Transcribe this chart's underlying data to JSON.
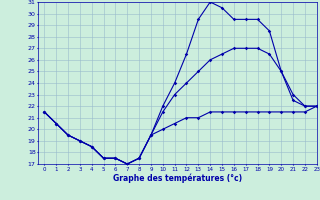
{
  "title": "Graphe des températures (°c)",
  "bg_color": "#cceedd",
  "line_color": "#0000aa",
  "grid_color": "#99bbcc",
  "ylim": [
    17,
    31
  ],
  "xlim": [
    -0.5,
    23
  ],
  "yticks": [
    17,
    18,
    19,
    20,
    21,
    22,
    23,
    24,
    25,
    26,
    27,
    28,
    29,
    30,
    31
  ],
  "xticks": [
    0,
    1,
    2,
    3,
    4,
    5,
    6,
    7,
    8,
    9,
    10,
    11,
    12,
    13,
    14,
    15,
    16,
    17,
    18,
    19,
    20,
    21,
    22,
    23
  ],
  "line_bottom_x": [
    0,
    1,
    2,
    3,
    4,
    5,
    6,
    7,
    8,
    9,
    10,
    11,
    12,
    13,
    14,
    15,
    16,
    17,
    18,
    19,
    20,
    21,
    22,
    23
  ],
  "line_bottom_y": [
    21.5,
    20.5,
    19.5,
    19.0,
    18.5,
    17.5,
    17.5,
    17.0,
    17.5,
    19.5,
    20.0,
    20.5,
    21.0,
    21.0,
    21.5,
    21.5,
    21.5,
    21.5,
    21.5,
    21.5,
    21.5,
    21.5,
    21.5,
    22.0
  ],
  "line_mid_x": [
    0,
    1,
    2,
    3,
    4,
    5,
    6,
    7,
    8,
    9,
    10,
    11,
    12,
    13,
    14,
    15,
    16,
    17,
    18,
    19,
    20,
    21,
    22,
    23
  ],
  "line_mid_y": [
    21.5,
    20.5,
    19.5,
    19.0,
    18.5,
    17.5,
    17.5,
    17.0,
    17.5,
    19.5,
    21.5,
    23.0,
    24.0,
    25.0,
    26.0,
    26.5,
    27.0,
    27.0,
    27.0,
    26.5,
    25.0,
    23.0,
    22.0,
    22.0
  ],
  "line_top_x": [
    0,
    1,
    2,
    3,
    4,
    5,
    6,
    7,
    8,
    9,
    10,
    11,
    12,
    13,
    14,
    15,
    16,
    17,
    18,
    19,
    20,
    21,
    22,
    23
  ],
  "line_top_y": [
    21.5,
    20.5,
    19.5,
    19.0,
    18.5,
    17.5,
    17.5,
    17.0,
    17.5,
    19.5,
    22.0,
    24.0,
    26.5,
    29.5,
    31.0,
    30.5,
    29.5,
    29.5,
    29.5,
    28.5,
    25.0,
    22.5,
    22.0,
    22.0
  ]
}
